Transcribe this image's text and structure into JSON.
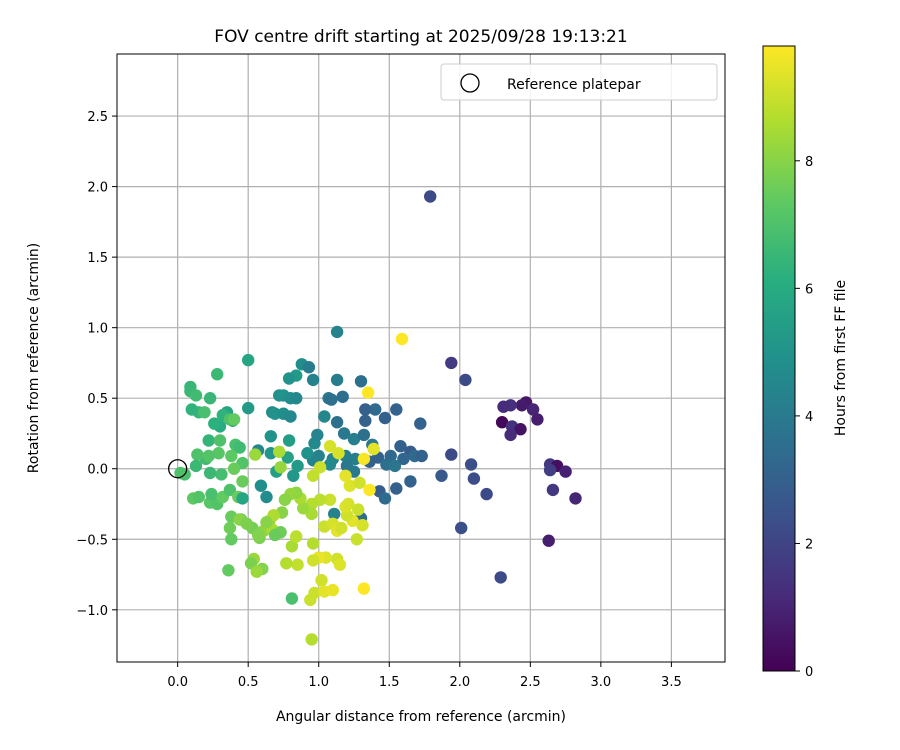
{
  "chart_data": {
    "type": "scatter",
    "title": "FOV centre drift starting at 2025/09/28 19:13:21",
    "xlabel": "Angular distance from reference (arcmin)",
    "ylabel": "Rotation from reference (arcmin)",
    "xlim": [
      -0.43,
      3.88
    ],
    "ylim": [
      -1.37,
      2.94
    ],
    "xticks": [
      0.0,
      0.5,
      1.0,
      1.5,
      2.0,
      2.5,
      3.0,
      3.5
    ],
    "xtick_labels": [
      "0.0",
      "0.5",
      "1.0",
      "1.5",
      "2.0",
      "2.5",
      "3.0",
      "3.5"
    ],
    "yticks": [
      -1.0,
      -0.5,
      0.0,
      0.5,
      1.0,
      1.5,
      2.0,
      2.5
    ],
    "ytick_labels": [
      "−1.0",
      "−0.5",
      "0.0",
      "0.5",
      "1.0",
      "1.5",
      "2.0",
      "2.5"
    ],
    "grid": true,
    "legend": {
      "position": "top-right",
      "entries": [
        "Reference platepar"
      ]
    },
    "reference_point": {
      "x": 0.0,
      "y": 0.0,
      "marker": "open-circle"
    },
    "colorbar": {
      "label": "Hours from first FF file",
      "min": 0,
      "max": 9.8,
      "ticks": [
        0,
        2,
        4,
        6,
        8
      ],
      "tick_labels": [
        "0",
        "2",
        "4",
        "6",
        "8"
      ],
      "colormap": "viridis"
    },
    "points": [
      [
        1.79,
        1.93,
        2.2
      ],
      [
        2.47,
        0.47,
        0.6
      ],
      [
        2.44,
        0.45,
        0.7
      ],
      [
        2.36,
        0.45,
        1.3
      ],
      [
        2.31,
        0.44,
        1.2
      ],
      [
        2.52,
        0.42,
        1.0
      ],
      [
        2.55,
        0.35,
        0.8
      ],
      [
        2.3,
        0.33,
        0.2
      ],
      [
        2.37,
        0.3,
        1.4
      ],
      [
        2.43,
        0.28,
        0.5
      ],
      [
        2.36,
        0.24,
        1.2
      ],
      [
        2.64,
        0.03,
        1.6
      ],
      [
        2.69,
        0.02,
        0.4
      ],
      [
        2.64,
        -0.01,
        1.8
      ],
      [
        2.75,
        -0.02,
        0.9
      ],
      [
        2.66,
        -0.15,
        1.6
      ],
      [
        2.82,
        -0.21,
        1.0
      ],
      [
        2.63,
        -0.51,
        0.8
      ],
      [
        2.29,
        -0.77,
        2.2
      ],
      [
        2.01,
        -0.42,
        2.4
      ],
      [
        2.19,
        -0.18,
        2.2
      ],
      [
        2.1,
        -0.07,
        2.3
      ],
      [
        2.08,
        0.03,
        2.4
      ],
      [
        1.94,
        0.75,
        1.7
      ],
      [
        2.04,
        0.63,
        2.2
      ],
      [
        1.94,
        0.1,
        2.2
      ],
      [
        1.87,
        -0.05,
        2.7
      ],
      [
        1.72,
        0.32,
        3.1
      ],
      [
        1.58,
        0.16,
        3.0
      ],
      [
        1.65,
        0.12,
        2.8
      ],
      [
        1.55,
        0.42,
        3.1
      ],
      [
        1.47,
        0.36,
        3.0
      ],
      [
        1.4,
        0.42,
        3.4
      ],
      [
        1.33,
        0.42,
        3.0
      ],
      [
        1.33,
        0.34,
        3.1
      ],
      [
        1.3,
        0.62,
        3.6
      ],
      [
        1.13,
        0.97,
        4.3
      ],
      [
        1.13,
        0.63,
        4.1
      ],
      [
        1.17,
        0.51,
        3.5
      ],
      [
        1.07,
        0.5,
        3.9
      ],
      [
        1.09,
        0.49,
        3.6
      ],
      [
        1.04,
        0.37,
        4.5
      ],
      [
        1.13,
        0.33,
        3.6
      ],
      [
        1.18,
        0.25,
        3.9
      ],
      [
        1.25,
        0.21,
        4.2
      ],
      [
        1.32,
        0.24,
        3.6
      ],
      [
        1.38,
        0.17,
        3.9
      ],
      [
        1.42,
        0.08,
        3.1
      ],
      [
        1.51,
        0.09,
        3.3
      ],
      [
        1.6,
        0.07,
        3.2
      ],
      [
        1.68,
        0.09,
        3.4
      ],
      [
        1.73,
        0.09,
        3.1
      ],
      [
        1.48,
        0.03,
        3.6
      ],
      [
        1.54,
        0.02,
        3.8
      ],
      [
        1.36,
        0.05,
        3.0
      ],
      [
        1.26,
        0.07,
        4.2
      ],
      [
        1.19,
        0.09,
        4.1
      ],
      [
        1.1,
        0.07,
        4.4
      ],
      [
        1.0,
        0.09,
        4.3
      ],
      [
        0.96,
        0.06,
        4.3
      ],
      [
        1.08,
        0.03,
        4.6
      ],
      [
        1.2,
        0.02,
        3.9
      ],
      [
        1.25,
        -0.02,
        4.0
      ],
      [
        1.43,
        -0.16,
        2.9
      ],
      [
        1.47,
        -0.21,
        3.4
      ],
      [
        1.55,
        -0.14,
        3.0
      ],
      [
        1.65,
        -0.09,
        3.1
      ],
      [
        1.3,
        -0.35,
        3.5
      ],
      [
        1.11,
        -0.32,
        4.3
      ],
      [
        0.88,
        0.74,
        4.8
      ],
      [
        0.93,
        0.72,
        4.1
      ],
      [
        0.84,
        0.66,
        5.3
      ],
      [
        0.79,
        0.64,
        5.0
      ],
      [
        0.96,
        0.63,
        4.3
      ],
      [
        0.72,
        0.52,
        4.9
      ],
      [
        0.75,
        0.52,
        5.0
      ],
      [
        0.8,
        0.5,
        4.7
      ],
      [
        0.84,
        0.5,
        4.6
      ],
      [
        0.67,
        0.4,
        4.7
      ],
      [
        0.69,
        0.39,
        5.0
      ],
      [
        0.75,
        0.39,
        4.8
      ],
      [
        0.8,
        0.37,
        4.6
      ],
      [
        0.66,
        0.23,
        5.0
      ],
      [
        0.79,
        0.2,
        5.4
      ],
      [
        0.97,
        0.18,
        4.6
      ],
      [
        0.99,
        0.24,
        4.4
      ],
      [
        0.92,
        0.11,
        4.9
      ],
      [
        0.78,
        0.08,
        5.6
      ],
      [
        0.85,
        0.02,
        5.3
      ],
      [
        0.7,
        -0.02,
        5.5
      ],
      [
        0.82,
        -0.05,
        5.2
      ],
      [
        0.59,
        -0.12,
        4.8
      ],
      [
        0.63,
        -0.2,
        4.7
      ],
      [
        0.57,
        0.13,
        4.5
      ],
      [
        0.66,
        0.11,
        5.1
      ],
      [
        0.5,
        0.43,
        5.3
      ],
      [
        0.5,
        0.77,
        5.7
      ],
      [
        0.39,
        0.34,
        5.9
      ],
      [
        0.35,
        0.4,
        5.7
      ],
      [
        0.3,
        0.3,
        6.0
      ],
      [
        0.26,
        0.32,
        6.2
      ],
      [
        0.22,
        0.2,
        6.4
      ],
      [
        0.15,
        0.4,
        6.5
      ],
      [
        0.1,
        0.42,
        6.3
      ],
      [
        0.09,
        0.55,
        6.6
      ],
      [
        0.09,
        0.58,
        6.5
      ],
      [
        0.13,
        0.52,
        6.7
      ],
      [
        0.23,
        0.5,
        6.5
      ],
      [
        0.28,
        0.67,
        6.6
      ],
      [
        0.19,
        0.4,
        6.9
      ],
      [
        0.32,
        0.38,
        6.3
      ],
      [
        0.37,
        0.35,
        7.0
      ],
      [
        0.4,
        0.35,
        7.4
      ],
      [
        0.41,
        0.17,
        6.9
      ],
      [
        0.44,
        0.15,
        6.7
      ],
      [
        0.3,
        0.2,
        7.0
      ],
      [
        0.29,
        0.11,
        7.2
      ],
      [
        0.38,
        0.09,
        7.3
      ],
      [
        0.46,
        0.04,
        7.1
      ],
      [
        0.4,
        0.0,
        7.5
      ],
      [
        0.31,
        -0.04,
        6.8
      ],
      [
        0.23,
        -0.03,
        6.6
      ],
      [
        0.2,
        0.07,
        6.7
      ],
      [
        0.14,
        0.1,
        7.0
      ],
      [
        0.22,
        0.09,
        7.1
      ],
      [
        0.13,
        0.02,
        6.6
      ],
      [
        0.05,
        -0.04,
        6.9
      ],
      [
        0.02,
        -0.03,
        7.0
      ],
      [
        0.11,
        -0.21,
        7.3
      ],
      [
        0.15,
        -0.2,
        7.1
      ],
      [
        0.23,
        -0.24,
        7.2
      ],
      [
        0.28,
        -0.25,
        7.1
      ],
      [
        0.24,
        -0.18,
        6.9
      ],
      [
        0.32,
        -0.2,
        7.4
      ],
      [
        0.37,
        -0.15,
        7.0
      ],
      [
        0.46,
        -0.09,
        7.5
      ],
      [
        0.43,
        -0.2,
        7.5
      ],
      [
        0.46,
        -0.21,
        5.8
      ],
      [
        0.38,
        -0.34,
        7.5
      ],
      [
        0.45,
        -0.36,
        7.4
      ],
      [
        0.37,
        -0.42,
        7.6
      ],
      [
        0.38,
        -0.5,
        7.4
      ],
      [
        0.53,
        -0.42,
        7.7
      ],
      [
        0.58,
        -0.49,
        7.8
      ],
      [
        0.61,
        -0.44,
        8.1
      ],
      [
        0.65,
        -0.37,
        8.2
      ],
      [
        0.67,
        -0.43,
        8.5
      ],
      [
        0.73,
        -0.45,
        7.6
      ],
      [
        0.69,
        -0.47,
        7.5
      ],
      [
        0.57,
        -0.47,
        7.9
      ],
      [
        0.54,
        -0.64,
        8.3
      ],
      [
        0.52,
        -0.67,
        7.8
      ],
      [
        0.6,
        -0.71,
        7.9
      ],
      [
        0.56,
        -0.73,
        8.3
      ],
      [
        0.36,
        -0.72,
        7.4
      ],
      [
        0.81,
        -0.55,
        8.5
      ],
      [
        0.84,
        -0.48,
        8.8
      ],
      [
        0.81,
        -0.92,
        6.9
      ],
      [
        0.85,
        -0.68,
        8.9
      ],
      [
        0.77,
        -0.67,
        8.7
      ],
      [
        0.94,
        -0.93,
        9.0
      ],
      [
        0.95,
        -1.21,
        8.7
      ],
      [
        0.97,
        -0.88,
        9.0
      ],
      [
        1.02,
        -0.79,
        9.1
      ],
      [
        1.04,
        -0.87,
        9.4
      ],
      [
        1.1,
        -0.86,
        9.5
      ],
      [
        1.13,
        -0.64,
        9.1
      ],
      [
        1.15,
        -0.68,
        9.3
      ],
      [
        1.05,
        -0.63,
        9.3
      ],
      [
        1.0,
        -0.63,
        9.5
      ],
      [
        0.96,
        -0.65,
        9.1
      ],
      [
        0.96,
        -0.53,
        8.7
      ],
      [
        1.04,
        -0.41,
        9.0
      ],
      [
        1.1,
        -0.39,
        9.2
      ],
      [
        1.13,
        -0.44,
        9.4
      ],
      [
        1.16,
        -0.42,
        9.1
      ],
      [
        1.24,
        -0.37,
        9.4
      ],
      [
        1.27,
        -0.5,
        9.0
      ],
      [
        1.31,
        -0.4,
        9.2
      ],
      [
        1.2,
        -0.33,
        9.1
      ],
      [
        1.19,
        -0.27,
        9.3
      ],
      [
        1.21,
        -0.25,
        9.2
      ],
      [
        1.28,
        -0.29,
        9.0
      ],
      [
        1.22,
        -0.12,
        9.3
      ],
      [
        1.29,
        -0.1,
        9.1
      ],
      [
        1.08,
        -0.22,
        9.0
      ],
      [
        1.01,
        -0.22,
        8.8
      ],
      [
        0.95,
        -0.25,
        8.7
      ],
      [
        0.95,
        -0.32,
        8.5
      ],
      [
        0.89,
        -0.28,
        8.3
      ],
      [
        0.87,
        -0.21,
        8.5
      ],
      [
        0.84,
        -0.17,
        8.1
      ],
      [
        0.8,
        -0.18,
        8.2
      ],
      [
        0.76,
        -0.22,
        8.0
      ],
      [
        0.74,
        -0.31,
        8.0
      ],
      [
        0.68,
        -0.33,
        8.6
      ],
      [
        0.96,
        -0.05,
        8.9
      ],
      [
        1.01,
        0.01,
        9.0
      ],
      [
        1.08,
        0.16,
        9.2
      ],
      [
        1.14,
        0.11,
        9.2
      ],
      [
        1.19,
        -0.05,
        9.4
      ],
      [
        1.32,
        0.07,
        9.7
      ],
      [
        1.36,
        -0.15,
        9.8
      ],
      [
        1.39,
        0.14,
        9.4
      ],
      [
        1.35,
        0.54,
        9.9
      ],
      [
        1.59,
        0.92,
        9.8
      ],
      [
        1.32,
        -0.85,
        9.9
      ],
      [
        0.72,
        0.12,
        8.5
      ],
      [
        0.73,
        0.01,
        8.2
      ],
      [
        0.55,
        0.1,
        8.3
      ],
      [
        0.44,
        -0.36,
        8.0
      ],
      [
        0.49,
        -0.39,
        7.8
      ],
      [
        0.63,
        -0.38,
        8.0
      ]
    ]
  }
}
